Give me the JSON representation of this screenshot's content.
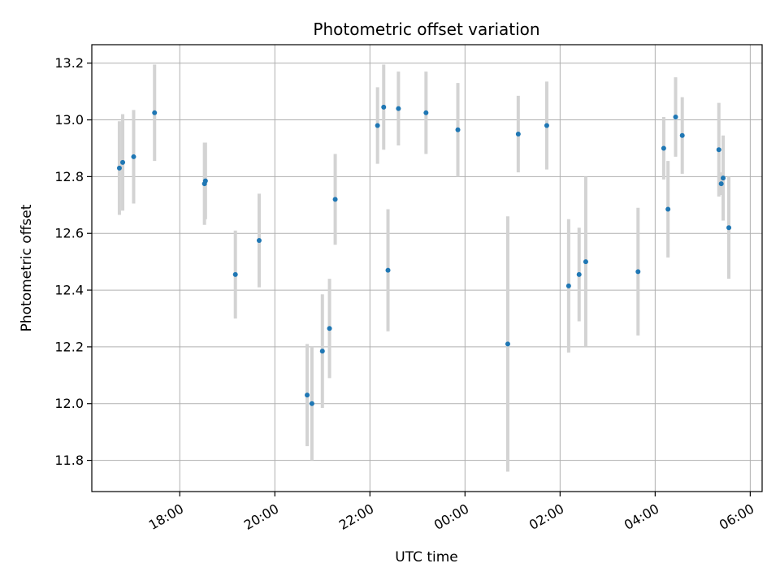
{
  "chart_data": {
    "type": "scatter",
    "title": "Photometric offset variation",
    "xlabel": "UTC time",
    "ylabel": "Photometric offset",
    "grid": true,
    "x_unit": "hours since 00:00 of first day",
    "xlim": [
      16.15,
      30.25
    ],
    "ylim": [
      11.69,
      13.265
    ],
    "x_ticks": [
      {
        "value": 18,
        "label": "18:00"
      },
      {
        "value": 20,
        "label": "20:00"
      },
      {
        "value": 22,
        "label": "22:00"
      },
      {
        "value": 24,
        "label": "00:00"
      },
      {
        "value": 26,
        "label": "02:00"
      },
      {
        "value": 28,
        "label": "04:00"
      },
      {
        "value": 30,
        "label": "06:00"
      }
    ],
    "y_ticks": [
      {
        "value": 11.8,
        "label": "11.8"
      },
      {
        "value": 12.0,
        "label": "12.0"
      },
      {
        "value": 12.2,
        "label": "12.2"
      },
      {
        "value": 12.4,
        "label": "12.4"
      },
      {
        "value": 12.6,
        "label": "12.6"
      },
      {
        "value": 12.8,
        "label": "12.8"
      },
      {
        "value": 13.0,
        "label": "13.0"
      },
      {
        "value": 13.2,
        "label": "13.2"
      }
    ],
    "marker_color": "#1f77b4",
    "errorbar_color": "#d3d3d3",
    "points": [
      {
        "x": 16.73,
        "y": 12.83,
        "err": 0.165
      },
      {
        "x": 16.8,
        "y": 12.85,
        "err": 0.17
      },
      {
        "x": 17.03,
        "y": 12.87,
        "err": 0.165
      },
      {
        "x": 17.47,
        "y": 13.025,
        "err": 0.17
      },
      {
        "x": 18.52,
        "y": 12.775,
        "err": 0.145
      },
      {
        "x": 18.54,
        "y": 12.785,
        "err": 0.135
      },
      {
        "x": 19.17,
        "y": 12.455,
        "err": 0.155
      },
      {
        "x": 19.67,
        "y": 12.575,
        "err": 0.165
      },
      {
        "x": 20.68,
        "y": 12.03,
        "err": 0.18
      },
      {
        "x": 20.78,
        "y": 12.0,
        "err": 0.2
      },
      {
        "x": 21.0,
        "y": 12.185,
        "err": 0.2
      },
      {
        "x": 21.15,
        "y": 12.265,
        "err": 0.175
      },
      {
        "x": 21.27,
        "y": 12.72,
        "err": 0.16
      },
      {
        "x": 22.16,
        "y": 12.98,
        "err": 0.135
      },
      {
        "x": 22.29,
        "y": 13.045,
        "err": 0.15
      },
      {
        "x": 22.38,
        "y": 12.47,
        "err": 0.215
      },
      {
        "x": 22.6,
        "y": 13.04,
        "err": 0.13
      },
      {
        "x": 23.18,
        "y": 13.025,
        "err": 0.145
      },
      {
        "x": 23.85,
        "y": 12.965,
        "err": 0.165
      },
      {
        "x": 24.9,
        "y": 12.21,
        "err": 0.45
      },
      {
        "x": 25.12,
        "y": 12.95,
        "err": 0.135
      },
      {
        "x": 25.72,
        "y": 12.98,
        "err": 0.155
      },
      {
        "x": 26.18,
        "y": 12.415,
        "err": 0.235
      },
      {
        "x": 26.4,
        "y": 12.455,
        "err": 0.165
      },
      {
        "x": 26.54,
        "y": 12.5,
        "err": 0.3
      },
      {
        "x": 27.64,
        "y": 12.465,
        "err": 0.225
      },
      {
        "x": 28.18,
        "y": 12.9,
        "err": 0.11
      },
      {
        "x": 28.27,
        "y": 12.685,
        "err": 0.17
      },
      {
        "x": 28.43,
        "y": 13.01,
        "err": 0.14
      },
      {
        "x": 28.57,
        "y": 12.945,
        "err": 0.135
      },
      {
        "x": 29.34,
        "y": 12.895,
        "err": 0.165
      },
      {
        "x": 29.39,
        "y": 12.775,
        "err": 0.04
      },
      {
        "x": 29.43,
        "y": 12.795,
        "err": 0.15
      },
      {
        "x": 29.55,
        "y": 12.62,
        "err": 0.18
      }
    ]
  }
}
